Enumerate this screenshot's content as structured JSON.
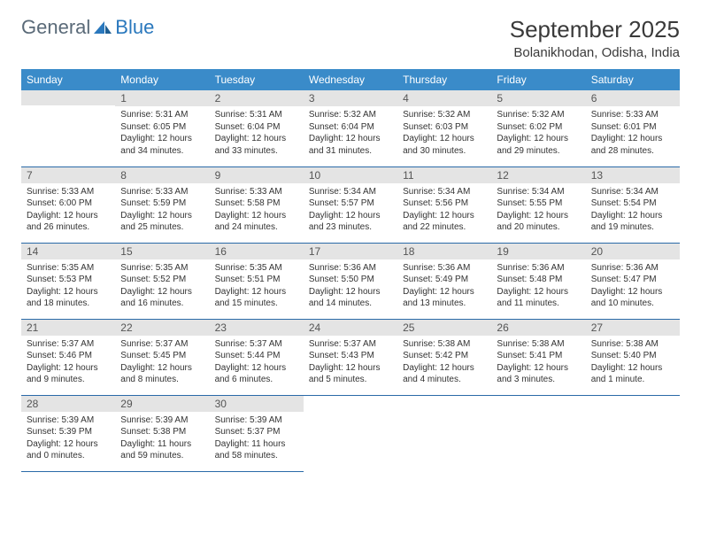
{
  "brand": {
    "part1": "General",
    "part2": "Blue"
  },
  "title": "September 2025",
  "location": "Bolanikhodan, Odisha, India",
  "colors": {
    "header_bg": "#3a8bc9",
    "header_text": "#ffffff",
    "daynum_bg": "#e4e4e4",
    "row_border": "#2a6aa8",
    "brand_gray": "#5a6a78",
    "brand_blue": "#2a78bd"
  },
  "weekdays": [
    "Sunday",
    "Monday",
    "Tuesday",
    "Wednesday",
    "Thursday",
    "Friday",
    "Saturday"
  ],
  "start_offset": 1,
  "days": [
    {
      "n": 1,
      "sr": "5:31 AM",
      "ss": "6:05 PM",
      "dl": "12 hours and 34 minutes."
    },
    {
      "n": 2,
      "sr": "5:31 AM",
      "ss": "6:04 PM",
      "dl": "12 hours and 33 minutes."
    },
    {
      "n": 3,
      "sr": "5:32 AM",
      "ss": "6:04 PM",
      "dl": "12 hours and 31 minutes."
    },
    {
      "n": 4,
      "sr": "5:32 AM",
      "ss": "6:03 PM",
      "dl": "12 hours and 30 minutes."
    },
    {
      "n": 5,
      "sr": "5:32 AM",
      "ss": "6:02 PM",
      "dl": "12 hours and 29 minutes."
    },
    {
      "n": 6,
      "sr": "5:33 AM",
      "ss": "6:01 PM",
      "dl": "12 hours and 28 minutes."
    },
    {
      "n": 7,
      "sr": "5:33 AM",
      "ss": "6:00 PM",
      "dl": "12 hours and 26 minutes."
    },
    {
      "n": 8,
      "sr": "5:33 AM",
      "ss": "5:59 PM",
      "dl": "12 hours and 25 minutes."
    },
    {
      "n": 9,
      "sr": "5:33 AM",
      "ss": "5:58 PM",
      "dl": "12 hours and 24 minutes."
    },
    {
      "n": 10,
      "sr": "5:34 AM",
      "ss": "5:57 PM",
      "dl": "12 hours and 23 minutes."
    },
    {
      "n": 11,
      "sr": "5:34 AM",
      "ss": "5:56 PM",
      "dl": "12 hours and 22 minutes."
    },
    {
      "n": 12,
      "sr": "5:34 AM",
      "ss": "5:55 PM",
      "dl": "12 hours and 20 minutes."
    },
    {
      "n": 13,
      "sr": "5:34 AM",
      "ss": "5:54 PM",
      "dl": "12 hours and 19 minutes."
    },
    {
      "n": 14,
      "sr": "5:35 AM",
      "ss": "5:53 PM",
      "dl": "12 hours and 18 minutes."
    },
    {
      "n": 15,
      "sr": "5:35 AM",
      "ss": "5:52 PM",
      "dl": "12 hours and 16 minutes."
    },
    {
      "n": 16,
      "sr": "5:35 AM",
      "ss": "5:51 PM",
      "dl": "12 hours and 15 minutes."
    },
    {
      "n": 17,
      "sr": "5:36 AM",
      "ss": "5:50 PM",
      "dl": "12 hours and 14 minutes."
    },
    {
      "n": 18,
      "sr": "5:36 AM",
      "ss": "5:49 PM",
      "dl": "12 hours and 13 minutes."
    },
    {
      "n": 19,
      "sr": "5:36 AM",
      "ss": "5:48 PM",
      "dl": "12 hours and 11 minutes."
    },
    {
      "n": 20,
      "sr": "5:36 AM",
      "ss": "5:47 PM",
      "dl": "12 hours and 10 minutes."
    },
    {
      "n": 21,
      "sr": "5:37 AM",
      "ss": "5:46 PM",
      "dl": "12 hours and 9 minutes."
    },
    {
      "n": 22,
      "sr": "5:37 AM",
      "ss": "5:45 PM",
      "dl": "12 hours and 8 minutes."
    },
    {
      "n": 23,
      "sr": "5:37 AM",
      "ss": "5:44 PM",
      "dl": "12 hours and 6 minutes."
    },
    {
      "n": 24,
      "sr": "5:37 AM",
      "ss": "5:43 PM",
      "dl": "12 hours and 5 minutes."
    },
    {
      "n": 25,
      "sr": "5:38 AM",
      "ss": "5:42 PM",
      "dl": "12 hours and 4 minutes."
    },
    {
      "n": 26,
      "sr": "5:38 AM",
      "ss": "5:41 PM",
      "dl": "12 hours and 3 minutes."
    },
    {
      "n": 27,
      "sr": "5:38 AM",
      "ss": "5:40 PM",
      "dl": "12 hours and 1 minute."
    },
    {
      "n": 28,
      "sr": "5:39 AM",
      "ss": "5:39 PM",
      "dl": "12 hours and 0 minutes."
    },
    {
      "n": 29,
      "sr": "5:39 AM",
      "ss": "5:38 PM",
      "dl": "11 hours and 59 minutes."
    },
    {
      "n": 30,
      "sr": "5:39 AM",
      "ss": "5:37 PM",
      "dl": "11 hours and 58 minutes."
    }
  ],
  "labels": {
    "sunrise": "Sunrise:",
    "sunset": "Sunset:",
    "daylight": "Daylight:"
  }
}
